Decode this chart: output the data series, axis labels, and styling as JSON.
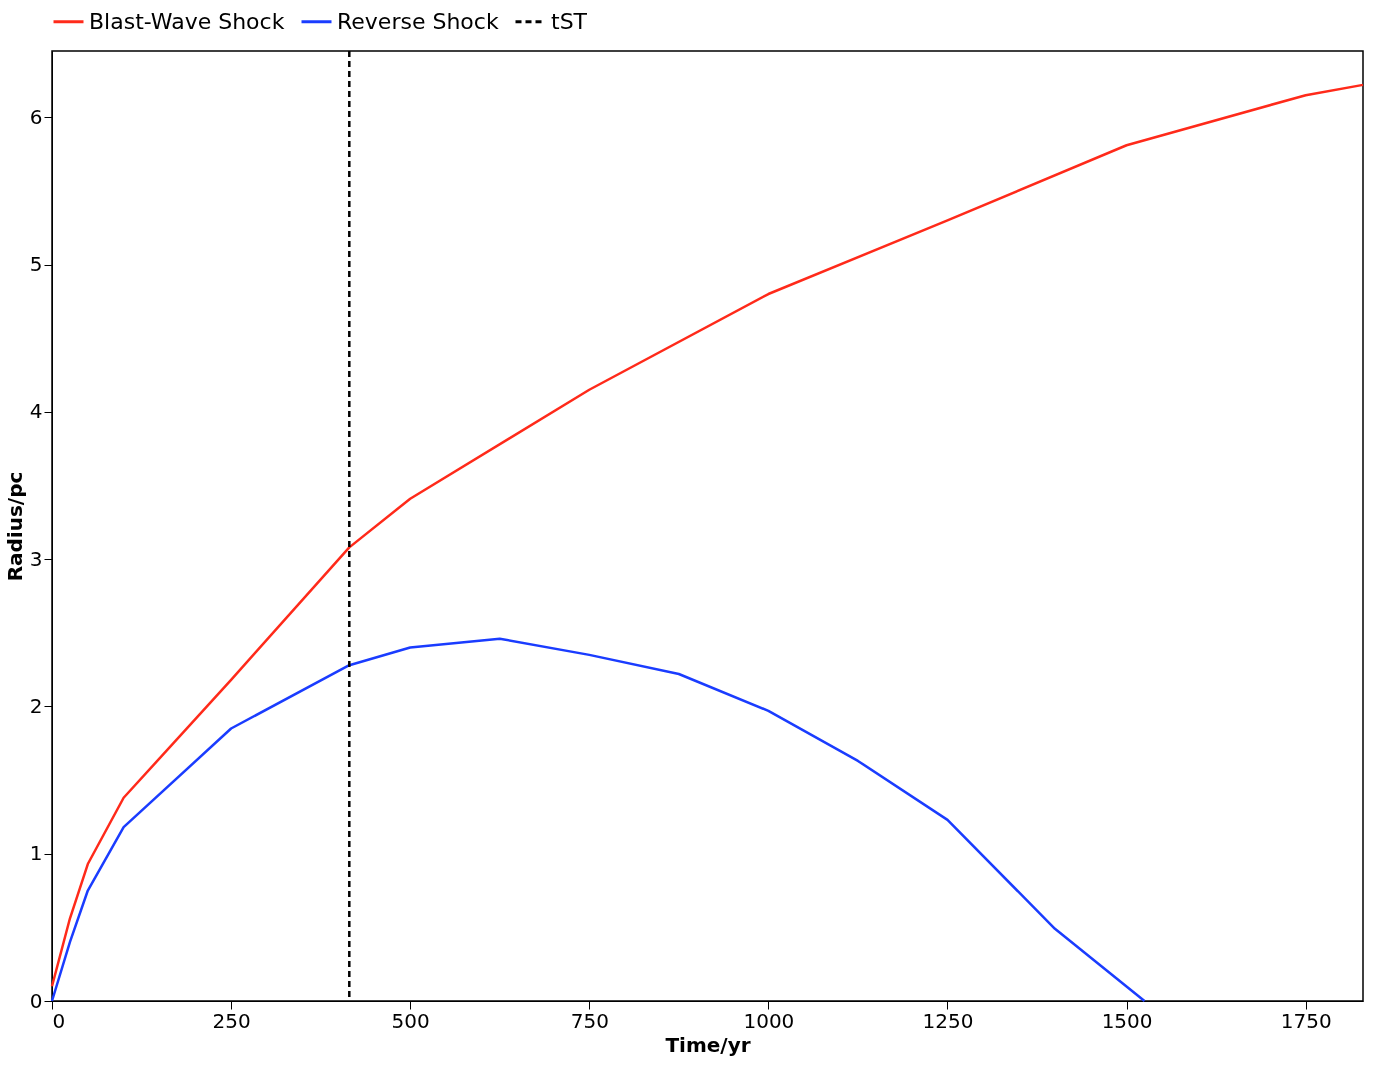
{
  "chart_data": {
    "type": "line",
    "xlabel": "Time/yr",
    "ylabel": "Radius/pc",
    "xlim": [
      0,
      1830
    ],
    "ylim": [
      0,
      6.45
    ],
    "xticks": [
      0,
      250,
      500,
      750,
      1000,
      1250,
      1500,
      1750
    ],
    "yticks": [
      0,
      1,
      2,
      3,
      4,
      5,
      6
    ],
    "grid": false,
    "legend": "top",
    "marker": "none",
    "line_style": "solid",
    "series": [
      {
        "name": "Blast-Wave Shock",
        "color": "#ff2a1a",
        "x": [
          0,
          25,
          50,
          100,
          250,
          415,
          500,
          750,
          1000,
          1250,
          1500,
          1750,
          1830
        ],
        "values": [
          0.1,
          0.56,
          0.93,
          1.38,
          2.18,
          3.08,
          3.41,
          4.15,
          4.8,
          5.3,
          5.81,
          6.15,
          6.22
        ]
      },
      {
        "name": "Reverse Shock",
        "color": "#1a3cff",
        "x": [
          0,
          25,
          50,
          100,
          250,
          415,
          500,
          625,
          750,
          875,
          1000,
          1125,
          1250,
          1400,
          1525
        ],
        "values": [
          0,
          0.4,
          0.75,
          1.18,
          1.85,
          2.28,
          2.4,
          2.46,
          2.35,
          2.22,
          1.97,
          1.63,
          1.23,
          0.49,
          0
        ]
      }
    ],
    "ref_lines": [
      {
        "axis": "x",
        "value": 415,
        "label": "tST",
        "color": "#000000",
        "line_style": "dashed"
      }
    ]
  }
}
